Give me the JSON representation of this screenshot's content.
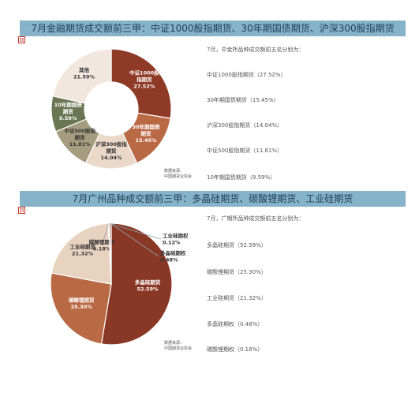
{
  "panels": [
    {
      "title": "7月金融期货成交额前三甲：中证1000股指期货、30年期国债期货、沪深300股指期货",
      "marker": "回",
      "intro": "7月，中金所品种成交额前五名分别为：",
      "items": [
        "中证1000股指期货（27.52%）",
        "30年期国债期货（15.45%）",
        "沪深300股指期货（14.04%）",
        "中证500股指期货（11.81%）",
        "10年期国债期货（9.59%）"
      ],
      "source_label": "数据来源：",
      "source_org": "中国期货业协会"
    },
    {
      "title": "7月广州品种成交额前三甲：多晶硅期货、碳酸锂期货、工业硅期货",
      "marker": "回",
      "intro": "7月，广期所品种成交额前五名分别为：",
      "items": [
        "多晶硅期货（52.59%）",
        "碳酸锂期货（25.30%）",
        "工业硅期货（21.32%）",
        "多晶硅期权（0.48%）",
        "碳酸锂期权（0.18%）"
      ],
      "source_label": "数据来源：",
      "source_org": "中国期货业协会"
    }
  ],
  "chart_data": [
    {
      "type": "pie",
      "categories": [
        "中证1000股指期货",
        "30年期国债期货",
        "沪深300股指期货",
        "中证500股指期货",
        "10年期国债期货",
        "其他"
      ],
      "values": [
        27.52,
        15.45,
        14.04,
        11.81,
        9.59,
        21.59
      ],
      "label_lines": [
        [
          "中证1000股",
          "指期货"
        ],
        [
          "30年期国债",
          "期货"
        ],
        [
          "沪深300股指",
          "期货"
        ],
        [
          "中证500股指",
          "期货"
        ],
        [
          "10年期国债",
          "期货"
        ],
        [
          "其他"
        ]
      ],
      "value_labels": [
        "27.52%",
        "15.45%",
        "14.04%",
        "11.81%",
        "9.59%",
        "21.59%"
      ],
      "colors": [
        "#8f3a26",
        "#b96a45",
        "#ead8c9",
        "#a69d80",
        "#6a7553",
        "#f2e7df"
      ],
      "donut": true
    },
    {
      "type": "pie",
      "categories": [
        "多晶硅期货",
        "碳酸锂期货",
        "工业硅期货",
        "碳酸锂期权",
        "工业硅期权",
        "多晶硅期权"
      ],
      "values": [
        52.59,
        25.3,
        21.32,
        0.18,
        0.12,
        0.48
      ],
      "label_lines": [
        [
          "多晶硅期货"
        ],
        [
          "碳酸锂期货"
        ],
        [
          "工业硅期货"
        ],
        [
          "碳酸锂期权"
        ],
        [
          "工业硅期权"
        ],
        [
          "多晶硅期权"
        ]
      ],
      "value_labels": [
        "52.59%",
        "25.30%",
        "21.32%",
        "0.18%",
        "0.12%",
        "0.48%"
      ],
      "colors": [
        "#8a3826",
        "#b96a45",
        "#e8d2c0",
        "#d9b8a0",
        "#c8a080",
        "#a0553a"
      ],
      "donut": false
    }
  ]
}
